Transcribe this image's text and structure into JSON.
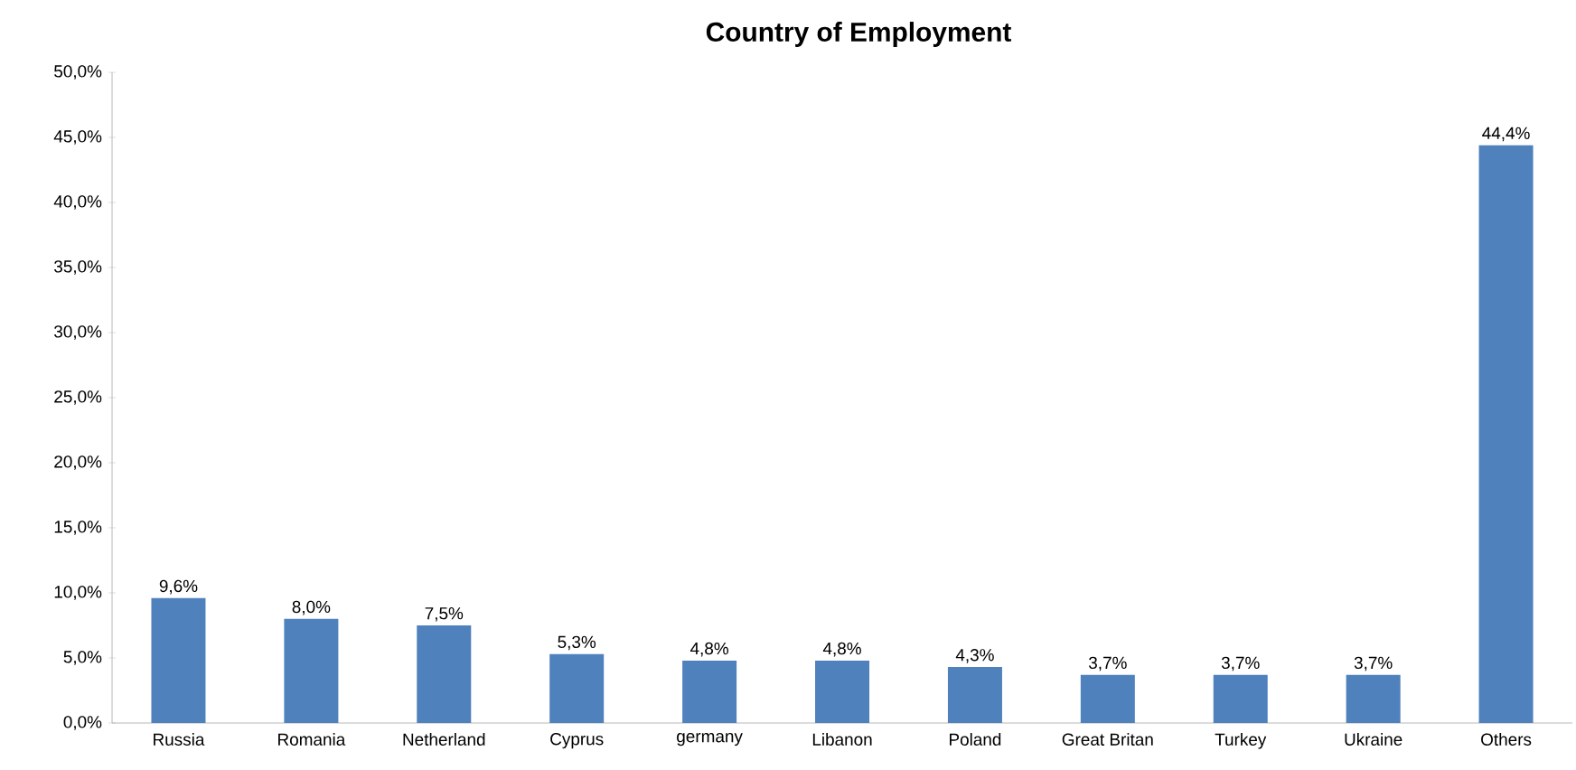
{
  "chart_data": {
    "type": "bar",
    "title": "Country of Employment",
    "categories": [
      "Russia",
      "Romania",
      "Netherland",
      "Cyprus",
      "germany",
      "Libanon",
      "Poland",
      "Great Britan",
      "Turkey",
      "Ukraine",
      "Others"
    ],
    "values": [
      9.6,
      8.0,
      7.5,
      5.3,
      4.8,
      4.8,
      4.3,
      3.7,
      3.7,
      3.7,
      44.4
    ],
    "value_labels": [
      "9,6%",
      "8,0%",
      "7,5%",
      "5,3%",
      "4,8%",
      "4,8%",
      "4,3%",
      "3,7%",
      "3,7%",
      "3,7%",
      "44,4%"
    ],
    "color": "#4f81bd",
    "ylim": [
      0,
      50
    ],
    "yticks": [
      {
        "value": 0,
        "label": "0,0%"
      },
      {
        "value": 5,
        "label": "5,0%"
      },
      {
        "value": 10,
        "label": "10,0%"
      },
      {
        "value": 15,
        "label": "15,0%"
      },
      {
        "value": 20,
        "label": "20,0%"
      },
      {
        "value": 25,
        "label": "25,0%"
      },
      {
        "value": 30,
        "label": "30,0%"
      },
      {
        "value": 35,
        "label": "35,0%"
      },
      {
        "value": 40,
        "label": "40,0%"
      },
      {
        "value": 45,
        "label": "45,0%"
      },
      {
        "value": 50,
        "label": "50,0%"
      }
    ],
    "grid": false
  }
}
